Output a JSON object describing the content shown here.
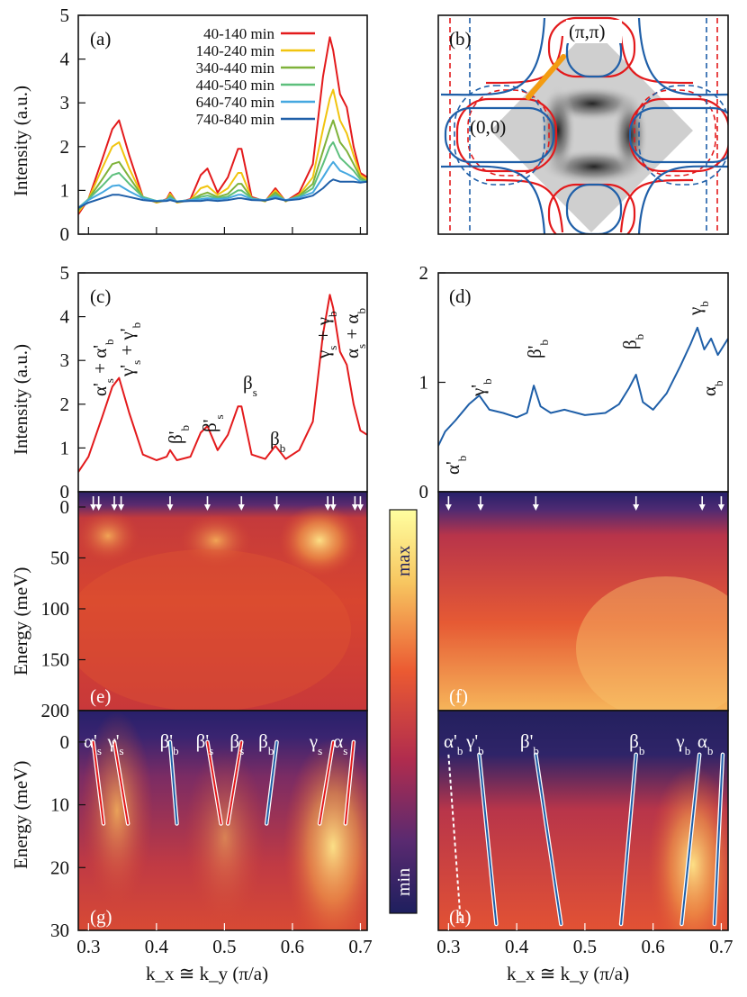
{
  "figure": {
    "x_axis_label": "k_x ≅ k_y (π/a)",
    "colorbar": {
      "max_label": "max",
      "min_label": "min",
      "colors": [
        "#ffffa0",
        "#f5b14c",
        "#e84a2f",
        "#b42e4c",
        "#5b2a6e",
        "#222060"
      ]
    },
    "line_colors": {
      "red": "#e31a1c",
      "blue": "#1f5fa8"
    }
  },
  "chart_data": [
    {
      "panel": "(a)",
      "type": "line",
      "ylabel": "Intensity (a.u.)",
      "ylim": [
        0,
        5
      ],
      "xlim": [
        0.285,
        0.71
      ],
      "yticks": [
        0,
        1,
        2,
        3,
        4,
        5
      ],
      "legend_position": "top",
      "series": [
        {
          "name": "40-140 min",
          "color": "#e31a1c",
          "x": [
            0.285,
            0.3,
            0.32,
            0.335,
            0.345,
            0.36,
            0.38,
            0.4,
            0.415,
            0.42,
            0.43,
            0.45,
            0.465,
            0.475,
            0.49,
            0.505,
            0.52,
            0.525,
            0.54,
            0.56,
            0.575,
            0.59,
            0.61,
            0.63,
            0.645,
            0.655,
            0.66,
            0.67,
            0.68,
            0.69,
            0.7,
            0.71
          ],
          "y": [
            0.45,
            0.8,
            1.7,
            2.4,
            2.6,
            1.8,
            0.85,
            0.72,
            0.8,
            0.95,
            0.72,
            0.8,
            1.35,
            1.5,
            0.95,
            1.3,
            1.95,
            1.95,
            0.85,
            0.75,
            1.05,
            0.75,
            0.95,
            1.6,
            3.6,
            4.5,
            4.2,
            3.2,
            2.9,
            2.0,
            1.4,
            1.3
          ]
        },
        {
          "name": "140-240 min",
          "color": "#f1c40f",
          "x": [
            0.285,
            0.3,
            0.32,
            0.335,
            0.345,
            0.36,
            0.38,
            0.4,
            0.415,
            0.42,
            0.43,
            0.45,
            0.465,
            0.475,
            0.49,
            0.505,
            0.52,
            0.525,
            0.54,
            0.56,
            0.575,
            0.59,
            0.61,
            0.63,
            0.645,
            0.655,
            0.66,
            0.67,
            0.68,
            0.69,
            0.7,
            0.71
          ],
          "y": [
            0.5,
            0.8,
            1.5,
            2.0,
            2.1,
            1.5,
            0.85,
            0.72,
            0.78,
            0.92,
            0.72,
            0.78,
            1.05,
            1.1,
            0.9,
            1.05,
            1.4,
            1.4,
            0.82,
            0.75,
            1.0,
            0.75,
            0.9,
            1.3,
            2.4,
            3.1,
            3.3,
            2.6,
            2.3,
            1.8,
            1.35,
            1.25
          ]
        },
        {
          "name": "340-440 min",
          "color": "#7fb23a",
          "x": [
            0.285,
            0.3,
            0.32,
            0.335,
            0.345,
            0.36,
            0.38,
            0.4,
            0.415,
            0.42,
            0.43,
            0.45,
            0.465,
            0.475,
            0.49,
            0.505,
            0.52,
            0.525,
            0.54,
            0.56,
            0.575,
            0.59,
            0.61,
            0.63,
            0.645,
            0.655,
            0.66,
            0.67,
            0.68,
            0.69,
            0.7,
            0.71
          ],
          "y": [
            0.55,
            0.8,
            1.25,
            1.6,
            1.65,
            1.3,
            0.85,
            0.75,
            0.78,
            0.88,
            0.74,
            0.78,
            0.9,
            0.95,
            0.85,
            0.92,
            1.15,
            1.15,
            0.82,
            0.76,
            0.95,
            0.76,
            0.88,
            1.15,
            1.9,
            2.4,
            2.6,
            2.1,
            1.9,
            1.6,
            1.3,
            1.2
          ]
        },
        {
          "name": "440-540 min",
          "color": "#5dbf7c",
          "x": [
            0.285,
            0.3,
            0.32,
            0.335,
            0.345,
            0.36,
            0.38,
            0.4,
            0.415,
            0.42,
            0.43,
            0.45,
            0.465,
            0.475,
            0.49,
            0.505,
            0.52,
            0.525,
            0.54,
            0.56,
            0.575,
            0.59,
            0.61,
            0.63,
            0.645,
            0.655,
            0.66,
            0.67,
            0.68,
            0.69,
            0.7,
            0.71
          ],
          "y": [
            0.6,
            0.8,
            1.1,
            1.35,
            1.4,
            1.15,
            0.85,
            0.76,
            0.78,
            0.85,
            0.75,
            0.78,
            0.85,
            0.88,
            0.82,
            0.86,
            1.0,
            1.0,
            0.82,
            0.77,
            0.9,
            0.77,
            0.86,
            1.05,
            1.6,
            2.0,
            2.1,
            1.75,
            1.6,
            1.45,
            1.25,
            1.2
          ]
        },
        {
          "name": "640-740 min",
          "color": "#45a8e0",
          "x": [
            0.285,
            0.3,
            0.32,
            0.335,
            0.345,
            0.36,
            0.38,
            0.4,
            0.415,
            0.42,
            0.43,
            0.45,
            0.465,
            0.475,
            0.49,
            0.505,
            0.52,
            0.525,
            0.54,
            0.56,
            0.575,
            0.59,
            0.61,
            0.63,
            0.645,
            0.655,
            0.66,
            0.67,
            0.68,
            0.69,
            0.7,
            0.71
          ],
          "y": [
            0.6,
            0.78,
            0.95,
            1.1,
            1.12,
            0.98,
            0.82,
            0.76,
            0.78,
            0.82,
            0.75,
            0.78,
            0.8,
            0.82,
            0.8,
            0.82,
            0.9,
            0.9,
            0.8,
            0.78,
            0.86,
            0.78,
            0.84,
            0.95,
            1.3,
            1.55,
            1.65,
            1.45,
            1.38,
            1.3,
            1.2,
            1.2
          ]
        },
        {
          "name": "740-840 min",
          "color": "#1f5fa8",
          "x": [
            0.285,
            0.3,
            0.32,
            0.335,
            0.345,
            0.36,
            0.38,
            0.4,
            0.415,
            0.42,
            0.43,
            0.45,
            0.465,
            0.475,
            0.49,
            0.505,
            0.52,
            0.525,
            0.54,
            0.56,
            0.575,
            0.59,
            0.61,
            0.63,
            0.645,
            0.655,
            0.66,
            0.67,
            0.68,
            0.69,
            0.7,
            0.71
          ],
          "y": [
            0.6,
            0.72,
            0.82,
            0.9,
            0.9,
            0.85,
            0.78,
            0.75,
            0.76,
            0.78,
            0.74,
            0.76,
            0.76,
            0.78,
            0.76,
            0.78,
            0.82,
            0.82,
            0.78,
            0.77,
            0.82,
            0.77,
            0.8,
            0.88,
            1.05,
            1.2,
            1.25,
            1.2,
            1.2,
            1.2,
            1.18,
            1.2
          ]
        }
      ]
    },
    {
      "panel": "(b)",
      "type": "diagram",
      "labels": [
        "(π,π)",
        "(0,0)"
      ]
    },
    {
      "panel": "(c)",
      "type": "line",
      "ylabel": "Intensity (a.u.)",
      "ylim": [
        0,
        5
      ],
      "xlim": [
        0.285,
        0.71
      ],
      "yticks": [
        0,
        1,
        2,
        3,
        4,
        5
      ],
      "series": [
        {
          "color": "#e31a1c",
          "x": [
            0.285,
            0.3,
            0.32,
            0.335,
            0.345,
            0.36,
            0.38,
            0.4,
            0.415,
            0.42,
            0.43,
            0.45,
            0.465,
            0.475,
            0.49,
            0.505,
            0.52,
            0.525,
            0.54,
            0.56,
            0.575,
            0.59,
            0.61,
            0.63,
            0.645,
            0.655,
            0.66,
            0.67,
            0.68,
            0.69,
            0.7,
            0.71
          ],
          "y": [
            0.45,
            0.8,
            1.7,
            2.4,
            2.6,
            1.8,
            0.85,
            0.72,
            0.8,
            0.95,
            0.72,
            0.8,
            1.35,
            1.5,
            0.95,
            1.3,
            1.95,
            1.95,
            0.85,
            0.75,
            1.05,
            0.75,
            0.95,
            1.6,
            3.6,
            4.5,
            4.2,
            3.2,
            2.9,
            2.0,
            1.4,
            1.3
          ]
        }
      ],
      "annotations": [
        "α'_s + α'_b",
        "γ'_s + γ'_b",
        "β'_b",
        "β'_s",
        "β_s",
        "β_b",
        "γ_s + γ_b",
        "α_s + α_b"
      ]
    },
    {
      "panel": "(d)",
      "type": "line",
      "ylim": [
        0,
        2
      ],
      "xlim": [
        0.285,
        0.71
      ],
      "yticks": [
        0,
        1,
        2
      ],
      "series": [
        {
          "color": "#1f5fa8",
          "x": [
            0.285,
            0.295,
            0.31,
            0.33,
            0.345,
            0.36,
            0.38,
            0.4,
            0.415,
            0.425,
            0.435,
            0.45,
            0.47,
            0.5,
            0.53,
            0.55,
            0.565,
            0.575,
            0.585,
            0.6,
            0.62,
            0.64,
            0.655,
            0.665,
            0.675,
            0.685,
            0.695,
            0.71
          ],
          "y": [
            0.42,
            0.55,
            0.65,
            0.8,
            0.88,
            0.75,
            0.72,
            0.68,
            0.72,
            0.97,
            0.78,
            0.72,
            0.75,
            0.7,
            0.72,
            0.8,
            0.95,
            1.07,
            0.82,
            0.75,
            0.9,
            1.15,
            1.35,
            1.5,
            1.3,
            1.4,
            1.25,
            1.4
          ]
        }
      ],
      "annotations": [
        "α'_b",
        "γ'_b",
        "β'_b",
        "β_b",
        "γ_b",
        "α_b"
      ]
    },
    {
      "panel": "(e)",
      "type": "heatmap",
      "ylabel": "Energy (meV)",
      "ylim": [
        200,
        -15
      ],
      "yticks": [
        0,
        50,
        100,
        150,
        200
      ]
    },
    {
      "panel": "(f)",
      "type": "heatmap",
      "ylim": [
        200,
        -15
      ]
    },
    {
      "panel": "(g)",
      "type": "heatmap",
      "ylabel": "Energy (meV)",
      "ylim": [
        30,
        -5
      ],
      "yticks": [
        0,
        10,
        20,
        30
      ],
      "xticks": [
        0.3,
        0.4,
        0.5,
        0.6,
        0.7
      ],
      "band_labels": [
        "α'_s",
        "γ'_s",
        "β'_b",
        "β'_s",
        "β_s",
        "β_b",
        "γ_s",
        "α_s"
      ]
    },
    {
      "panel": "(h)",
      "type": "heatmap",
      "ylim": [
        30,
        -5
      ],
      "xticks": [
        0.3,
        0.4,
        0.5,
        0.6,
        0.7
      ],
      "band_labels": [
        "α'_b",
        "γ'_b",
        "β'_b",
        "β_b",
        "γ_b",
        "α_b"
      ]
    }
  ]
}
